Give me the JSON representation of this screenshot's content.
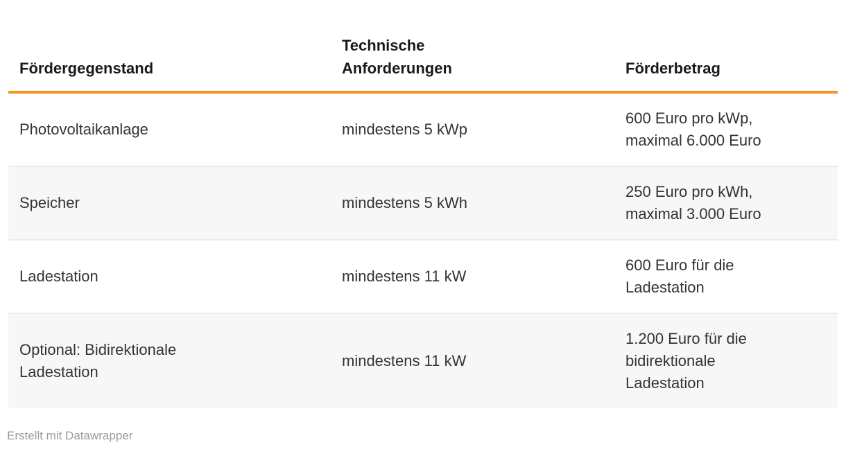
{
  "chart_data": {
    "type": "table",
    "title": "",
    "columns": [
      "Fördergegenstand",
      "Technische Anforderungen",
      "Förderbetrag"
    ],
    "rows": [
      [
        "Photovoltaikanlage",
        "mindestens 5 kWp",
        "600 Euro pro kWp, maximal 6.000 Euro"
      ],
      [
        "Speicher",
        "mindestens 5 kWh",
        "250 Euro pro kWh, maximal 3.000 Euro"
      ],
      [
        "Ladestation",
        "mindestens 11 kW",
        "600 Euro für die Ladestation"
      ],
      [
        "Optional: Bidirektionale Ladestation",
        "mindestens 11 kW",
        "1.200 Euro für die bidirektionale Ladestation"
      ]
    ],
    "layout_hints": {
      "header_rule": "thick orange line under header",
      "striped_rows": "even rows light gray",
      "legend_position": "none",
      "grid": "horizontal row separators only"
    }
  },
  "footer": {
    "attribution": "Erstellt mit Datawrapper"
  },
  "colors": {
    "accent": "#F7941D",
    "stripe": "#F7F7F7",
    "row_border": "#EBEBEB",
    "header_text": "#1A1A1A",
    "body_text": "#333333",
    "footer_text": "#9B9B9B"
  }
}
